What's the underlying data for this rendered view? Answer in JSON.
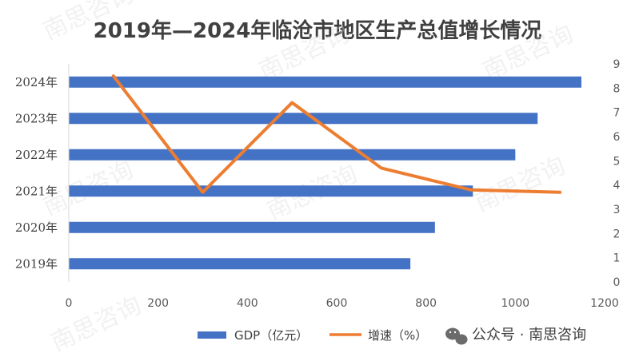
{
  "chart_data": {
    "type": "bar",
    "orientation": "horizontal",
    "title": "2019年—2024年临沧市地区生产总值增长情况",
    "categories": [
      "2019年",
      "2020年",
      "2021年",
      "2022年",
      "2023年",
      "2024年"
    ],
    "series": [
      {
        "name": "GDP（亿元）",
        "type": "bar",
        "axis": "primary",
        "values": [
          765,
          820,
          905,
          1000,
          1050,
          1148
        ],
        "color": "#4472C4"
      },
      {
        "name": "增速（%）",
        "type": "line",
        "axis": "secondary",
        "values": [
          8.5,
          3.7,
          7.4,
          4.7,
          3.8,
          3.7
        ],
        "color": "#ED7D31"
      }
    ],
    "primary_axis": {
      "min": 0,
      "max": 1200,
      "ticks": [
        "0",
        "200",
        "400",
        "600",
        "800",
        "1000",
        "1200"
      ]
    },
    "secondary_axis": {
      "min": 0,
      "max": 9,
      "ticks": [
        "0",
        "1",
        "2",
        "3",
        "4",
        "5",
        "6",
        "7",
        "8",
        "9"
      ]
    },
    "legend_position": "bottom",
    "grid": false
  },
  "watermark": {
    "text": "南思咨询",
    "source_label": "公众号 · 南思咨询"
  }
}
